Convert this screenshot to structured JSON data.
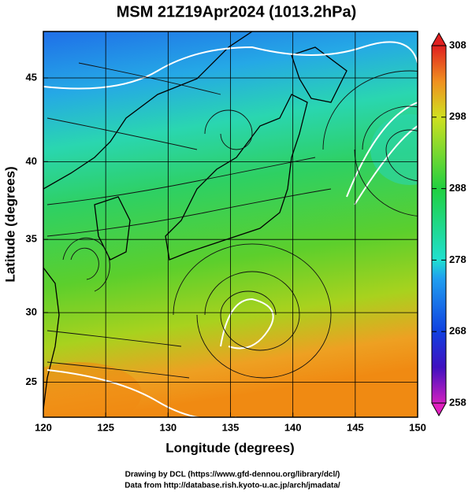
{
  "header": {
    "title": "MSM 21Z19Apr2024 (1013.2hPa)"
  },
  "map": {
    "xlabel": "Longitude (degrees)",
    "ylabel": "Latitude  (degrees)",
    "xlim": [
      120,
      150
    ],
    "ylim": [
      22.4,
      47.6
    ],
    "xticks": [
      120,
      125,
      130,
      135,
      140,
      145,
      150
    ],
    "yticks": [
      25,
      30,
      35,
      40,
      45
    ]
  },
  "colorbar": {
    "lim": [
      258,
      308
    ],
    "ticks": [
      258,
      268,
      278,
      288,
      298,
      308
    ]
  },
  "footer": {
    "lines": [
      "Drawing by DCL (https://www.gfd-dennou.org/library/dcl/)",
      "Data from http://database.rish.kyoto-u.ac.jp/arch/jmadata/"
    ]
  }
}
